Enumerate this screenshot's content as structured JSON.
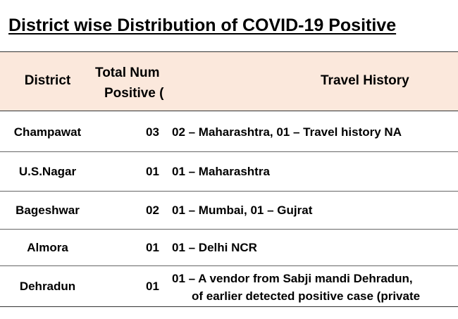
{
  "title": "District wise Distribution of COVID-19 Positive",
  "table": {
    "headers": {
      "district": "District",
      "total_line1": "Total Num",
      "total_line2": "Positive (",
      "travel": "Travel History"
    },
    "rows": [
      {
        "district": "Champawat",
        "total": "03",
        "travel": "02 – Maharashtra, 01 – Travel history NA",
        "travel2": ""
      },
      {
        "district": "U.S.Nagar",
        "total": "01",
        "travel": "01 – Maharashtra",
        "travel2": ""
      },
      {
        "district": "Bageshwar",
        "total": "02",
        "travel": "01 – Mumbai, 01 – Gujrat",
        "travel2": ""
      },
      {
        "district": "Almora",
        "total": "01",
        "travel": "01 – Delhi NCR",
        "travel2": ""
      },
      {
        "district": "Dehradun",
        "total": "01",
        "travel": "01 – A vendor from Sabji mandi Dehradun,",
        "travel2": "of earlier detected positive case (private"
      }
    ]
  },
  "colors": {
    "header_bg": "#fbe8dc",
    "text": "#000000",
    "rule": "#333333"
  }
}
